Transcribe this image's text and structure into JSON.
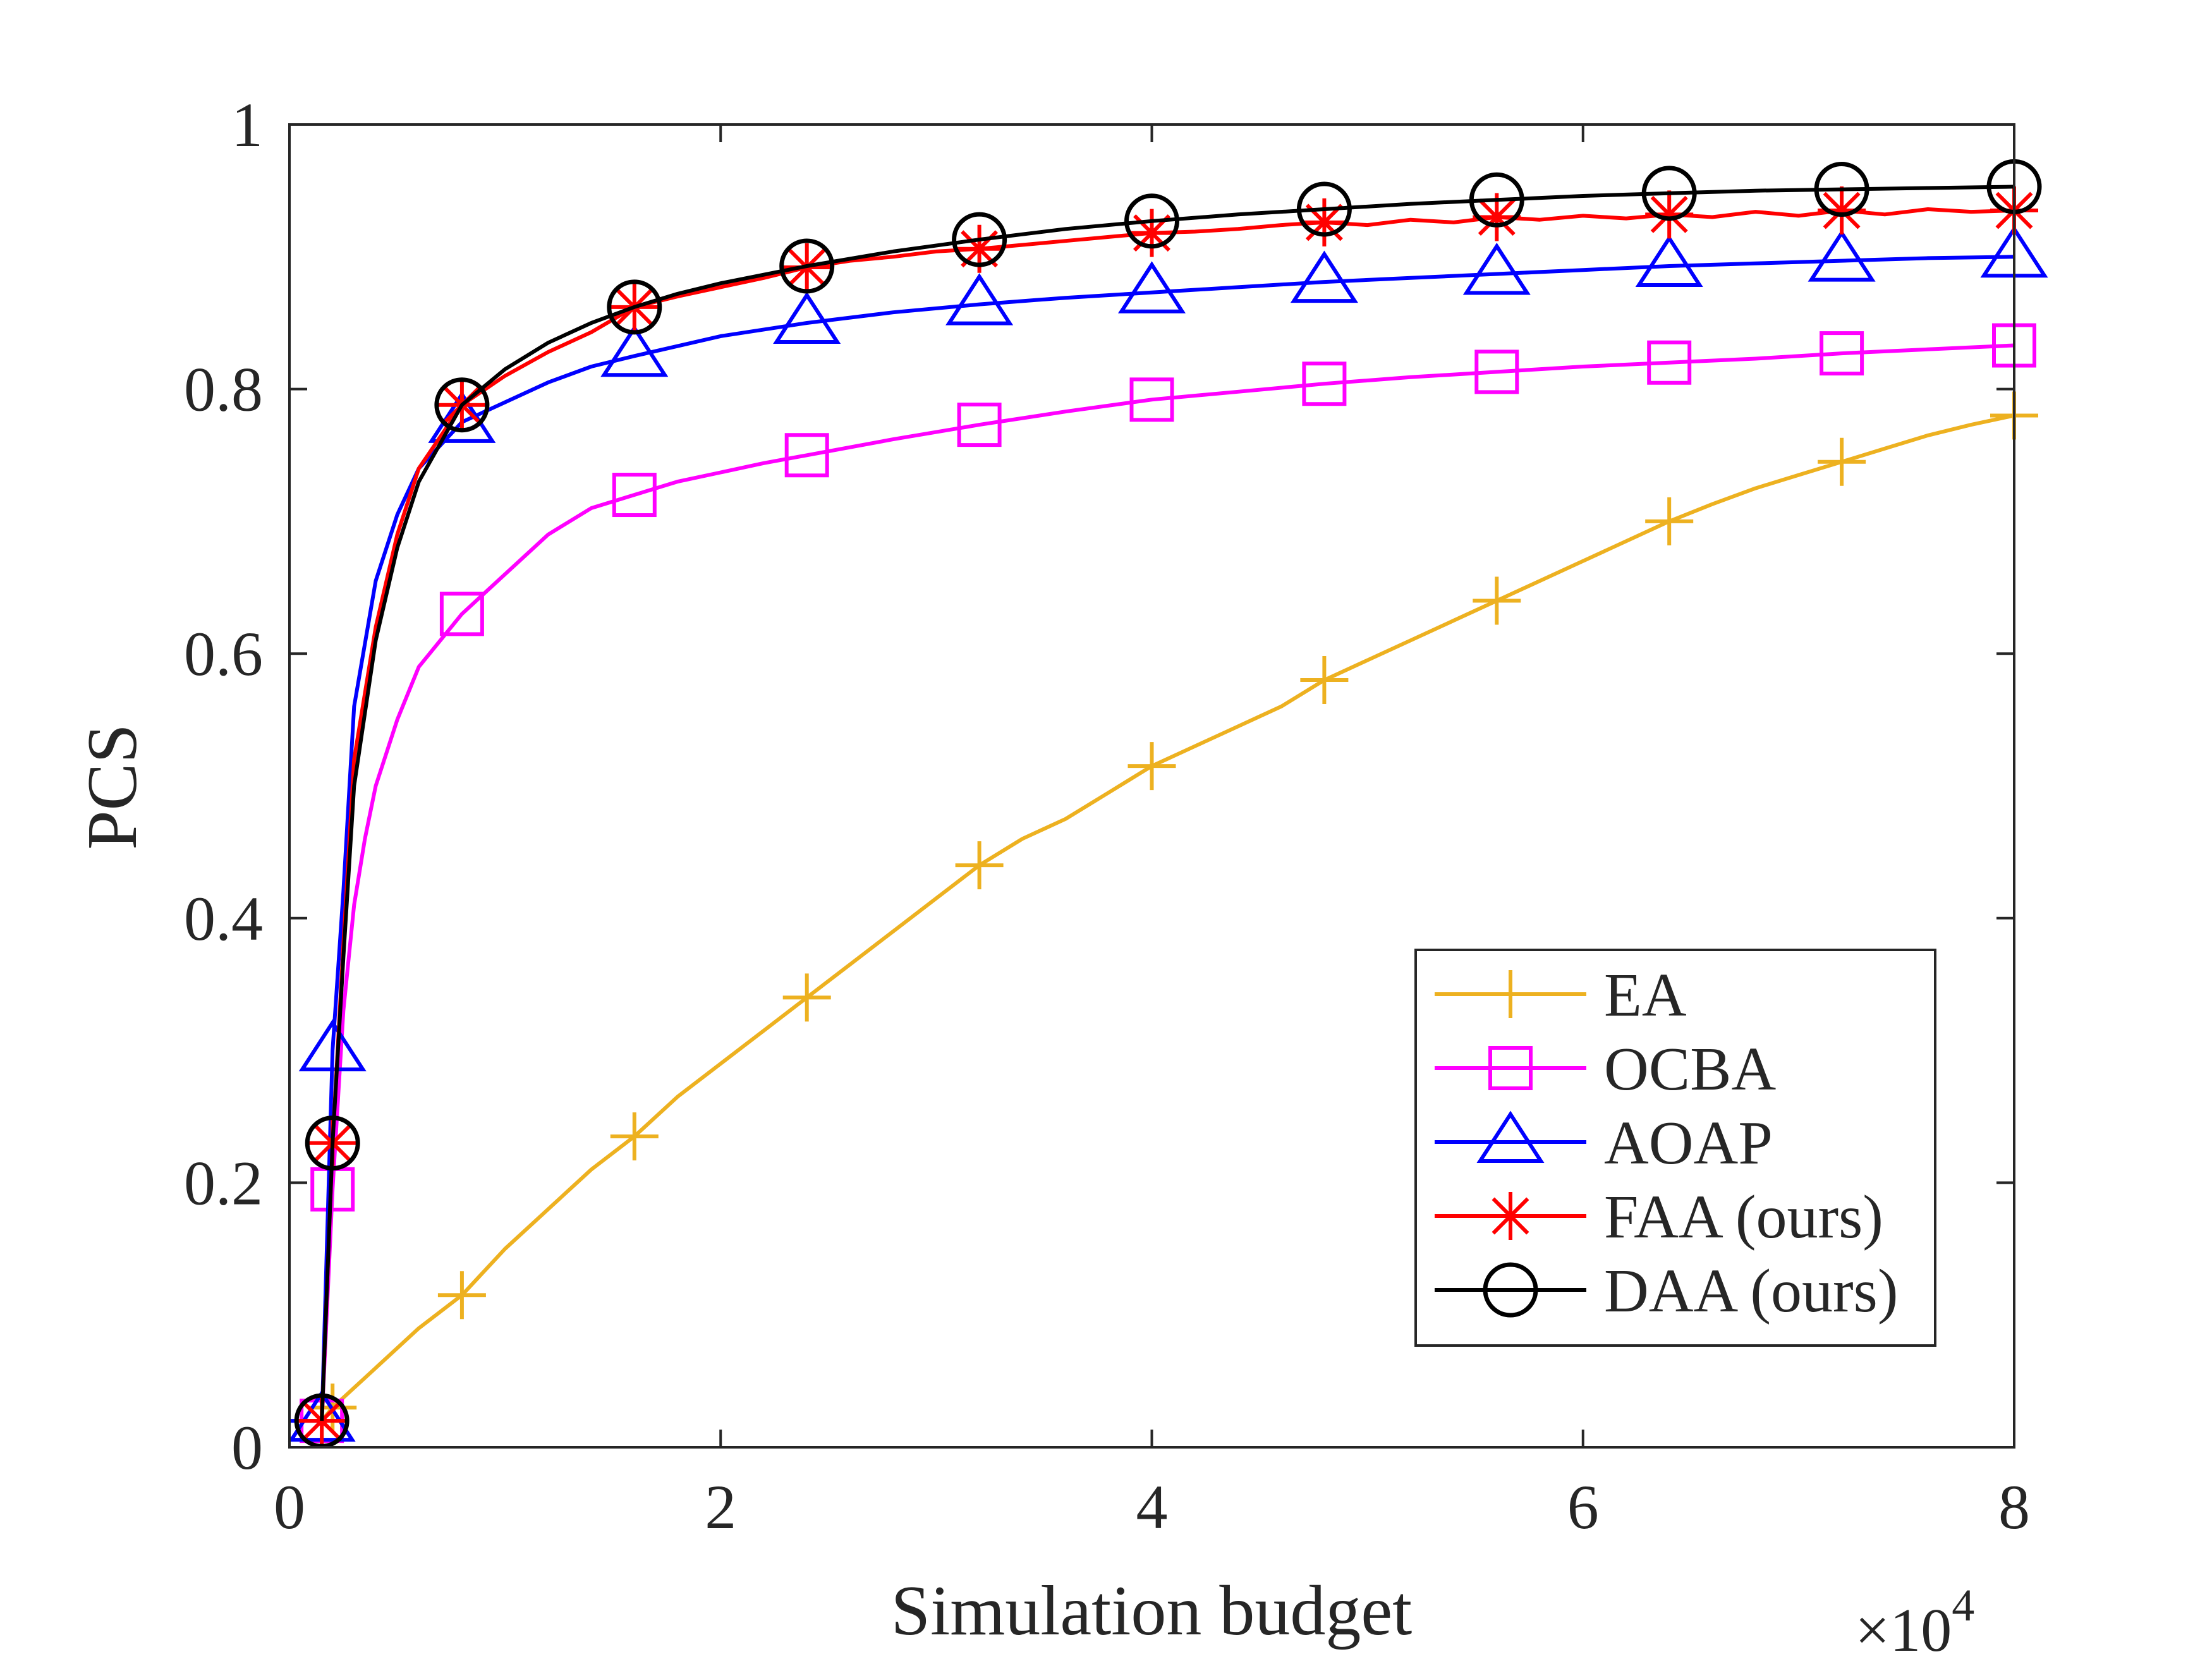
{
  "chart_data": {
    "type": "line",
    "title": "",
    "xlabel": "Simulation budget",
    "ylabel": "PCS",
    "x_exponent_label": "×10",
    "x_exponent_power": "4",
    "xlim": [
      0,
      8
    ],
    "ylim": [
      0,
      1
    ],
    "x_ticks": [
      0,
      2,
      4,
      6,
      8
    ],
    "x_tick_labels": [
      "0",
      "2",
      "4",
      "6",
      "8"
    ],
    "y_ticks": [
      0,
      0.2,
      0.4,
      0.6,
      0.8,
      1
    ],
    "y_tick_labels": [
      "0",
      "0.2",
      "0.4",
      "0.6",
      "0.8",
      "1"
    ],
    "grid": false,
    "legend_position": "bottom-right",
    "series": [
      {
        "name": "EA",
        "color": "#EDB120",
        "marker": "plus",
        "x": [
          0.15,
          0.2,
          0.4,
          0.6,
          0.8,
          1.0,
          1.2,
          1.4,
          1.6,
          1.8,
          2.0,
          2.2,
          2.4,
          2.6,
          2.8,
          3.0,
          3.2,
          3.4,
          3.6,
          3.8,
          4.0,
          4.2,
          4.4,
          4.6,
          4.8,
          5.0,
          5.2,
          5.4,
          5.6,
          5.8,
          6.0,
          6.2,
          6.4,
          6.6,
          6.8,
          7.0,
          7.2,
          7.4,
          7.6,
          7.8,
          8.0
        ],
        "y": [
          0.02,
          0.03,
          0.06,
          0.09,
          0.115,
          0.15,
          0.18,
          0.21,
          0.235,
          0.265,
          0.29,
          0.315,
          0.34,
          0.365,
          0.39,
          0.415,
          0.44,
          0.46,
          0.475,
          0.495,
          0.515,
          0.53,
          0.545,
          0.56,
          0.58,
          0.595,
          0.61,
          0.625,
          0.64,
          0.655,
          0.67,
          0.685,
          0.7,
          0.713,
          0.725,
          0.735,
          0.745,
          0.755,
          0.765,
          0.773,
          0.78
        ],
        "marker_x": [
          0.15,
          0.2,
          0.8,
          1.6,
          2.4,
          3.2,
          4.0,
          4.8,
          5.6,
          6.4,
          7.2,
          8.0
        ],
        "marker_y": [
          0.02,
          0.03,
          0.115,
          0.235,
          0.34,
          0.44,
          0.515,
          0.58,
          0.64,
          0.7,
          0.745,
          0.78
        ]
      },
      {
        "name": "OCBA",
        "color": "#FF00FF",
        "marker": "square",
        "x": [
          0.15,
          0.2,
          0.25,
          0.3,
          0.35,
          0.4,
          0.5,
          0.6,
          0.8,
          1.0,
          1.2,
          1.4,
          1.6,
          1.8,
          2.0,
          2.2,
          2.4,
          2.8,
          3.2,
          3.6,
          4.0,
          4.4,
          4.8,
          5.2,
          5.6,
          6.0,
          6.4,
          6.8,
          7.2,
          7.6,
          8.0
        ],
        "y": [
          0.02,
          0.195,
          0.33,
          0.41,
          0.46,
          0.5,
          0.55,
          0.59,
          0.63,
          0.66,
          0.69,
          0.71,
          0.72,
          0.73,
          0.737,
          0.744,
          0.75,
          0.762,
          0.773,
          0.783,
          0.792,
          0.798,
          0.804,
          0.809,
          0.813,
          0.817,
          0.82,
          0.823,
          0.827,
          0.83,
          0.833
        ],
        "marker_x": [
          0.15,
          0.2,
          0.8,
          1.6,
          2.4,
          3.2,
          4.0,
          4.8,
          5.6,
          6.4,
          7.2,
          8.0
        ],
        "marker_y": [
          0.02,
          0.195,
          0.63,
          0.72,
          0.75,
          0.773,
          0.792,
          0.804,
          0.813,
          0.82,
          0.827,
          0.833
        ]
      },
      {
        "name": "AOAP",
        "color": "#0000FF",
        "marker": "triangle",
        "x": [
          0.0,
          0.15,
          0.2,
          0.25,
          0.3,
          0.4,
          0.5,
          0.6,
          0.8,
          1.0,
          1.2,
          1.4,
          1.6,
          2.0,
          2.4,
          2.8,
          3.2,
          3.6,
          4.0,
          4.4,
          4.8,
          5.2,
          5.6,
          6.0,
          6.4,
          6.8,
          7.2,
          7.6,
          8.0
        ],
        "y": [
          0.02,
          0.02,
          0.3,
          0.42,
          0.56,
          0.655,
          0.705,
          0.74,
          0.775,
          0.79,
          0.805,
          0.817,
          0.825,
          0.84,
          0.85,
          0.858,
          0.864,
          0.869,
          0.873,
          0.877,
          0.881,
          0.884,
          0.887,
          0.89,
          0.893,
          0.895,
          0.897,
          0.899,
          0.9
        ],
        "marker_x": [
          0.15,
          0.2,
          0.8,
          1.6,
          2.4,
          3.2,
          4.0,
          4.8,
          5.6,
          6.4,
          7.2,
          8.0
        ],
        "marker_y": [
          0.02,
          0.3,
          0.775,
          0.825,
          0.85,
          0.864,
          0.873,
          0.881,
          0.887,
          0.893,
          0.897,
          0.9
        ]
      },
      {
        "name": "FAA (ours)",
        "color": "#FF0000",
        "marker": "asterisk",
        "x": [
          0.15,
          0.2,
          0.25,
          0.3,
          0.4,
          0.5,
          0.6,
          0.8,
          1.0,
          1.2,
          1.4,
          1.6,
          1.8,
          2.0,
          2.2,
          2.4,
          2.6,
          2.8,
          3.0,
          3.2,
          3.4,
          3.6,
          3.8,
          4.0,
          4.2,
          4.4,
          4.6,
          4.8,
          5.0,
          5.2,
          5.4,
          5.6,
          5.8,
          6.0,
          6.2,
          6.4,
          6.6,
          6.8,
          7.0,
          7.2,
          7.4,
          7.6,
          7.8,
          8.0
        ],
        "y": [
          0.02,
          0.23,
          0.38,
          0.52,
          0.62,
          0.69,
          0.74,
          0.788,
          0.81,
          0.828,
          0.843,
          0.862,
          0.87,
          0.877,
          0.884,
          0.892,
          0.897,
          0.9,
          0.904,
          0.906,
          0.909,
          0.912,
          0.915,
          0.918,
          0.919,
          0.921,
          0.924,
          0.926,
          0.924,
          0.928,
          0.926,
          0.93,
          0.928,
          0.931,
          0.929,
          0.932,
          0.93,
          0.934,
          0.931,
          0.935,
          0.932,
          0.936,
          0.934,
          0.935
        ],
        "marker_x": [
          0.15,
          0.2,
          0.8,
          1.6,
          2.4,
          3.2,
          4.0,
          4.8,
          5.6,
          6.4,
          7.2,
          8.0
        ],
        "marker_y": [
          0.02,
          0.23,
          0.788,
          0.862,
          0.892,
          0.906,
          0.918,
          0.926,
          0.93,
          0.932,
          0.935,
          0.935
        ]
      },
      {
        "name": "DAA (ours)",
        "color": "#000000",
        "marker": "circle",
        "x": [
          0.15,
          0.2,
          0.25,
          0.3,
          0.4,
          0.5,
          0.6,
          0.8,
          1.0,
          1.2,
          1.4,
          1.6,
          1.8,
          2.0,
          2.4,
          2.8,
          3.2,
          3.6,
          4.0,
          4.4,
          4.8,
          5.2,
          5.6,
          6.0,
          6.4,
          6.8,
          7.2,
          7.6,
          8.0
        ],
        "y": [
          0.02,
          0.23,
          0.37,
          0.5,
          0.61,
          0.68,
          0.73,
          0.788,
          0.815,
          0.835,
          0.85,
          0.862,
          0.872,
          0.88,
          0.893,
          0.904,
          0.913,
          0.921,
          0.927,
          0.932,
          0.936,
          0.94,
          0.943,
          0.946,
          0.948,
          0.95,
          0.951,
          0.952,
          0.953
        ],
        "marker_x": [
          0.15,
          0.2,
          0.8,
          1.6,
          2.4,
          3.2,
          4.0,
          4.8,
          5.6,
          6.4,
          7.2,
          8.0
        ],
        "marker_y": [
          0.02,
          0.23,
          0.788,
          0.862,
          0.893,
          0.913,
          0.927,
          0.936,
          0.943,
          0.948,
          0.951,
          0.953
        ]
      }
    ]
  }
}
